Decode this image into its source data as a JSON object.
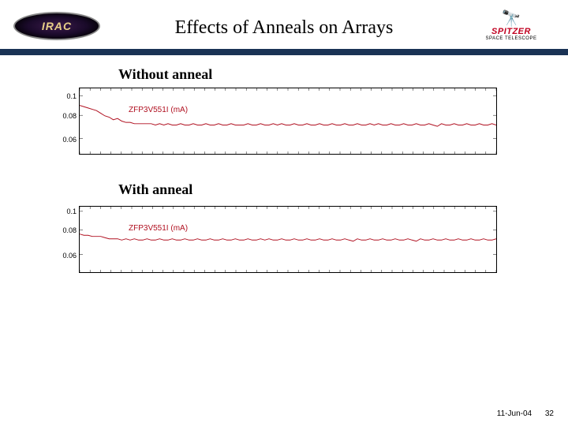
{
  "header": {
    "title": "Effects of Anneals on Arrays",
    "logo_left_text": "IRAC",
    "logo_right_main": "SPITZER",
    "logo_right_sub": "SPACE TELESCOPE"
  },
  "hr_color": "#1a3355",
  "section1": {
    "label": "Without anneal",
    "chart": {
      "series_label": "ZFP3V551I (mA)",
      "series_color": "#b01020",
      "y_ticks": [
        {
          "v": 0.1,
          "label": "0.1",
          "pos": 10
        },
        {
          "v": 0.08,
          "label": "0.08",
          "pos": 35
        },
        {
          "v": 0.06,
          "label": "0.06",
          "pos": 65
        }
      ],
      "x_minor_ticks": 40,
      "line_width": 1,
      "y": [
        0.092,
        0.091,
        0.09,
        0.089,
        0.088,
        0.086,
        0.084,
        0.083,
        0.081,
        0.082,
        0.08,
        0.079,
        0.079,
        0.078,
        0.078,
        0.078,
        0.078,
        0.078,
        0.077,
        0.078,
        0.077,
        0.078,
        0.077,
        0.077,
        0.078,
        0.077,
        0.077,
        0.078,
        0.077,
        0.077,
        0.078,
        0.077,
        0.077,
        0.078,
        0.077,
        0.077,
        0.078,
        0.077,
        0.077,
        0.077,
        0.078,
        0.077,
        0.077,
        0.078,
        0.077,
        0.077,
        0.078,
        0.077,
        0.078,
        0.077,
        0.077,
        0.078,
        0.077,
        0.077,
        0.078,
        0.077,
        0.077,
        0.078,
        0.077,
        0.077,
        0.078,
        0.077,
        0.077,
        0.078,
        0.077,
        0.077,
        0.078,
        0.077,
        0.077,
        0.078,
        0.077,
        0.078,
        0.077,
        0.077,
        0.078,
        0.077,
        0.077,
        0.078,
        0.077,
        0.077,
        0.078,
        0.077,
        0.077,
        0.078,
        0.077,
        0.076,
        0.078,
        0.077,
        0.077,
        0.078,
        0.077,
        0.077,
        0.078,
        0.077,
        0.077,
        0.078,
        0.077,
        0.077,
        0.078,
        0.077
      ],
      "ymin": 0.055,
      "ymax": 0.105
    }
  },
  "section2": {
    "label": "With anneal",
    "chart": {
      "series_label": "ZFP3V551I (mA)",
      "series_color": "#b01020",
      "y_ticks": [
        {
          "v": 0.1,
          "label": "0.1",
          "pos": 6
        },
        {
          "v": 0.08,
          "label": "0.08",
          "pos": 30
        },
        {
          "v": 0.06,
          "label": "0.06",
          "pos": 62
        }
      ],
      "x_minor_ticks": 40,
      "line_width": 1,
      "y": [
        0.082,
        0.081,
        0.081,
        0.08,
        0.08,
        0.08,
        0.079,
        0.078,
        0.078,
        0.078,
        0.077,
        0.078,
        0.077,
        0.078,
        0.077,
        0.077,
        0.078,
        0.077,
        0.077,
        0.078,
        0.077,
        0.077,
        0.078,
        0.077,
        0.077,
        0.078,
        0.077,
        0.077,
        0.078,
        0.077,
        0.077,
        0.078,
        0.077,
        0.077,
        0.078,
        0.077,
        0.077,
        0.078,
        0.077,
        0.077,
        0.078,
        0.077,
        0.077,
        0.078,
        0.077,
        0.078,
        0.077,
        0.077,
        0.078,
        0.077,
        0.077,
        0.078,
        0.077,
        0.077,
        0.078,
        0.077,
        0.077,
        0.078,
        0.077,
        0.077,
        0.078,
        0.077,
        0.077,
        0.078,
        0.077,
        0.076,
        0.078,
        0.077,
        0.077,
        0.078,
        0.077,
        0.077,
        0.078,
        0.077,
        0.077,
        0.078,
        0.077,
        0.077,
        0.078,
        0.077,
        0.076,
        0.078,
        0.077,
        0.077,
        0.078,
        0.077,
        0.077,
        0.078,
        0.077,
        0.077,
        0.078,
        0.077,
        0.077,
        0.078,
        0.077,
        0.077,
        0.078,
        0.077,
        0.077,
        0.078
      ],
      "ymin": 0.05,
      "ymax": 0.105
    }
  },
  "footer": {
    "date": "11-Jun-04",
    "page": "32"
  }
}
